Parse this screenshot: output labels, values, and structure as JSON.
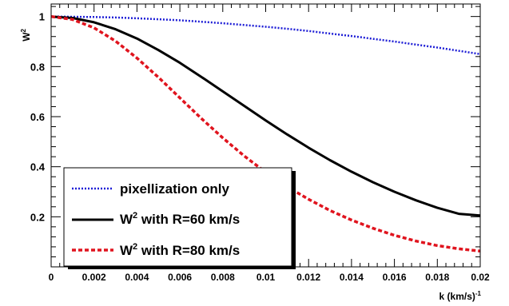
{
  "chart_data": {
    "type": "line",
    "title": "",
    "xlabel": "k  (km/s)",
    "xlabel_sup": "-1",
    "ylabel": "W",
    "ylabel_sup": "2",
    "xlim": [
      0,
      0.02
    ],
    "ylim": [
      0,
      1.05
    ],
    "xticks": [
      0,
      0.002,
      0.004,
      0.006,
      0.008,
      0.01,
      0.012,
      0.014,
      0.016,
      0.018,
      0.02
    ],
    "xtick_labels": [
      "0",
      "0.002",
      "0.004",
      "0.006",
      "0.008",
      "0.01",
      "0.012",
      "0.014",
      "0.016",
      "0.018",
      "0.02"
    ],
    "yticks": [
      0.2,
      0.4,
      0.6,
      0.8,
      1
    ],
    "ytick_labels": [
      "0.2",
      "0.4",
      "0.6",
      "0.8",
      "1"
    ],
    "grid": false,
    "legend_position": "bottom-left",
    "x": [
      0,
      0.001,
      0.002,
      0.003,
      0.004,
      0.005,
      0.006,
      0.007,
      0.008,
      0.009,
      0.01,
      0.011,
      0.012,
      0.013,
      0.014,
      0.015,
      0.016,
      0.017,
      0.018,
      0.019,
      0.02
    ],
    "series": [
      {
        "name": "pixellization only",
        "label_main": "pixellization only",
        "label_sup": "",
        "label_rest": "",
        "color": "#1f1fd6",
        "style": "dotted",
        "values": [
          1.0,
          0.999,
          0.998,
          0.996,
          0.993,
          0.989,
          0.985,
          0.979,
          0.973,
          0.966,
          0.959,
          0.951,
          0.942,
          0.932,
          0.922,
          0.911,
          0.9,
          0.888,
          0.876,
          0.863,
          0.85
        ]
      },
      {
        "name": "W2 with R=60 km/s",
        "label_main": "W",
        "label_sup": "2",
        "label_rest": " with R=60 km/s",
        "color": "#000000",
        "style": "solid",
        "values": [
          1.0,
          0.994,
          0.977,
          0.949,
          0.912,
          0.866,
          0.815,
          0.759,
          0.701,
          0.643,
          0.585,
          0.529,
          0.476,
          0.426,
          0.38,
          0.338,
          0.3,
          0.266,
          0.236,
          0.212,
          0.205
        ]
      },
      {
        "name": "W2 with R=80 km/s",
        "label_main": "W",
        "label_sup": "2",
        "label_rest": " with R=80 km/s",
        "color": "#e0141e",
        "style": "dashed",
        "values": [
          1.0,
          0.988,
          0.955,
          0.902,
          0.834,
          0.757,
          0.675,
          0.593,
          0.515,
          0.443,
          0.378,
          0.32,
          0.27,
          0.225,
          0.187,
          0.154,
          0.126,
          0.103,
          0.085,
          0.072,
          0.063
        ]
      }
    ]
  }
}
